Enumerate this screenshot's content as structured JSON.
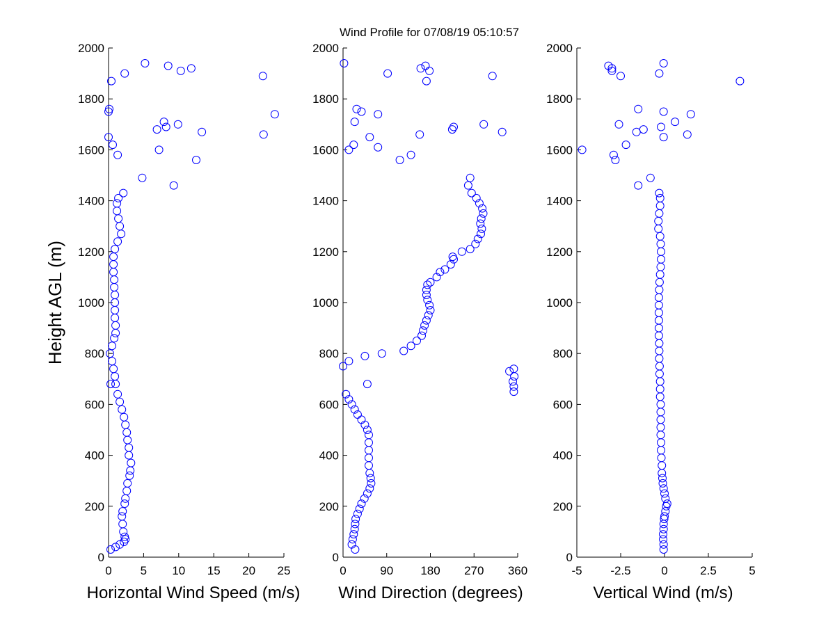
{
  "title": "Wind Profile for  07/08/19 05:10:57",
  "ylabel": "Height AGL (m)",
  "colors": {
    "marker": "#0000ff",
    "axis": "#000000",
    "background": "#ffffff"
  },
  "chart_data": [
    {
      "type": "scatter",
      "xlabel": "Horizontal Wind Speed (m/s)",
      "xlim": [
        0,
        25
      ],
      "ylim": [
        0,
        2000
      ],
      "xticks": [
        0,
        5,
        10,
        15,
        20,
        25
      ],
      "xtick_labels": [
        "0",
        "5",
        "10",
        "15",
        "20",
        "25"
      ],
      "yticks": [
        0,
        200,
        400,
        600,
        800,
        1000,
        1200,
        1400,
        1600,
        1800,
        2000
      ],
      "ytick_labels": [
        "0",
        "200",
        "400",
        "600",
        "800",
        "1000",
        "1200",
        "1400",
        "1600",
        "1800",
        "2000"
      ],
      "grid": false,
      "marker": "open circle",
      "points": [
        [
          0.3,
          30
        ],
        [
          1.0,
          40
        ],
        [
          1.6,
          50
        ],
        [
          2.2,
          60
        ],
        [
          2.4,
          70
        ],
        [
          2.3,
          80
        ],
        [
          2.1,
          100
        ],
        [
          2.0,
          130
        ],
        [
          1.9,
          160
        ],
        [
          2.0,
          180
        ],
        [
          2.3,
          210
        ],
        [
          2.4,
          230
        ],
        [
          2.6,
          260
        ],
        [
          2.7,
          290
        ],
        [
          3.0,
          320
        ],
        [
          3.1,
          340
        ],
        [
          3.2,
          370
        ],
        [
          2.9,
          400
        ],
        [
          2.9,
          430
        ],
        [
          2.7,
          460
        ],
        [
          2.6,
          490
        ],
        [
          2.4,
          520
        ],
        [
          2.2,
          550
        ],
        [
          1.9,
          580
        ],
        [
          1.6,
          610
        ],
        [
          1.3,
          640
        ],
        [
          1.0,
          680
        ],
        [
          0.9,
          710
        ],
        [
          0.7,
          740
        ],
        [
          0.5,
          770
        ],
        [
          0.2,
          800
        ],
        [
          0.5,
          830
        ],
        [
          0.8,
          860
        ],
        [
          1.0,
          880
        ],
        [
          1.0,
          910
        ],
        [
          0.9,
          940
        ],
        [
          0.9,
          970
        ],
        [
          0.9,
          1000
        ],
        [
          0.9,
          1030
        ],
        [
          0.8,
          1060
        ],
        [
          0.8,
          1090
        ],
        [
          0.7,
          1120
        ],
        [
          0.7,
          1150
        ],
        [
          0.7,
          1180
        ],
        [
          0.9,
          1210
        ],
        [
          1.3,
          1240
        ],
        [
          1.8,
          1270
        ],
        [
          1.6,
          1300
        ],
        [
          1.4,
          1330
        ],
        [
          1.2,
          1360
        ],
        [
          1.2,
          1390
        ],
        [
          1.4,
          1410
        ],
        [
          2.1,
          1430
        ],
        [
          0.3,
          680
        ],
        [
          5.2,
          1940
        ],
        [
          8.5,
          1930
        ],
        [
          11.8,
          1920
        ],
        [
          10.3,
          1910
        ],
        [
          2.3,
          1900
        ],
        [
          22.0,
          1890
        ],
        [
          0.4,
          1870
        ],
        [
          0.1,
          1760
        ],
        [
          0.0,
          1750
        ],
        [
          23.7,
          1740
        ],
        [
          7.9,
          1710
        ],
        [
          9.9,
          1700
        ],
        [
          8.2,
          1690
        ],
        [
          6.9,
          1680
        ],
        [
          13.3,
          1670
        ],
        [
          22.1,
          1660
        ],
        [
          0.0,
          1650
        ],
        [
          0.6,
          1620
        ],
        [
          7.2,
          1600
        ],
        [
          1.3,
          1580
        ],
        [
          12.5,
          1560
        ],
        [
          4.8,
          1490
        ],
        [
          9.3,
          1460
        ]
      ]
    },
    {
      "type": "scatter",
      "xlabel": "Wind Direction (degrees)",
      "xlim": [
        0,
        360
      ],
      "ylim": [
        0,
        2000
      ],
      "xticks": [
        0,
        90,
        180,
        270,
        360
      ],
      "xtick_labels": [
        "0",
        "90",
        "180",
        "270",
        "360"
      ],
      "yticks": [
        0,
        200,
        400,
        600,
        800,
        1000,
        1200,
        1400,
        1600,
        1800,
        2000
      ],
      "ytick_labels": [
        "0",
        "200",
        "400",
        "600",
        "800",
        "1000",
        "1200",
        "1400",
        "1600",
        "1800",
        "2000"
      ],
      "grid": false,
      "marker": "open circle",
      "points": [
        [
          25,
          30
        ],
        [
          18,
          50
        ],
        [
          20,
          70
        ],
        [
          22,
          90
        ],
        [
          24,
          110
        ],
        [
          25,
          130
        ],
        [
          26,
          150
        ],
        [
          30,
          170
        ],
        [
          34,
          190
        ],
        [
          38,
          210
        ],
        [
          44,
          230
        ],
        [
          50,
          250
        ],
        [
          55,
          270
        ],
        [
          58,
          290
        ],
        [
          57,
          310
        ],
        [
          55,
          330
        ],
        [
          53,
          360
        ],
        [
          53,
          390
        ],
        [
          53,
          420
        ],
        [
          53,
          450
        ],
        [
          53,
          480
        ],
        [
          50,
          500
        ],
        [
          45,
          520
        ],
        [
          38,
          540
        ],
        [
          30,
          560
        ],
        [
          24,
          580
        ],
        [
          18,
          600
        ],
        [
          12,
          620
        ],
        [
          6,
          640
        ],
        [
          50,
          680
        ],
        [
          0,
          750
        ],
        [
          12,
          770
        ],
        [
          45,
          790
        ],
        [
          80,
          800
        ],
        [
          125,
          810
        ],
        [
          140,
          830
        ],
        [
          152,
          850
        ],
        [
          162,
          870
        ],
        [
          165,
          890
        ],
        [
          168,
          910
        ],
        [
          172,
          930
        ],
        [
          176,
          950
        ],
        [
          180,
          970
        ],
        [
          178,
          990
        ],
        [
          174,
          1010
        ],
        [
          172,
          1030
        ],
        [
          172,
          1050
        ],
        [
          174,
          1070
        ],
        [
          180,
          1080
        ],
        [
          193,
          1100
        ],
        [
          200,
          1120
        ],
        [
          210,
          1130
        ],
        [
          222,
          1150
        ],
        [
          228,
          1170
        ],
        [
          226,
          1180
        ],
        [
          245,
          1200
        ],
        [
          262,
          1210
        ],
        [
          273,
          1230
        ],
        [
          278,
          1250
        ],
        [
          284,
          1270
        ],
        [
          286,
          1290
        ],
        [
          283,
          1310
        ],
        [
          285,
          1330
        ],
        [
          289,
          1350
        ],
        [
          287,
          1370
        ],
        [
          281,
          1390
        ],
        [
          275,
          1410
        ],
        [
          265,
          1430
        ],
        [
          258,
          1460
        ],
        [
          262,
          1490
        ],
        [
          352,
          650
        ],
        [
          352,
          670
        ],
        [
          350,
          690
        ],
        [
          353,
          710
        ],
        [
          343,
          730
        ],
        [
          352,
          740
        ],
        [
          2,
          1940
        ],
        [
          170,
          1930
        ],
        [
          160,
          1920
        ],
        [
          178,
          1910
        ],
        [
          92,
          1900
        ],
        [
          308,
          1890
        ],
        [
          172,
          1870
        ],
        [
          28,
          1760
        ],
        [
          38,
          1750
        ],
        [
          72,
          1740
        ],
        [
          24,
          1710
        ],
        [
          290,
          1700
        ],
        [
          228,
          1690
        ],
        [
          225,
          1680
        ],
        [
          328,
          1670
        ],
        [
          158,
          1660
        ],
        [
          55,
          1650
        ],
        [
          22,
          1620
        ],
        [
          72,
          1610
        ],
        [
          12,
          1600
        ],
        [
          140,
          1580
        ],
        [
          117,
          1560
        ]
      ]
    },
    {
      "type": "scatter",
      "xlabel": "Vertical Wind (m/s)",
      "xlim": [
        -5,
        5
      ],
      "ylim": [
        0,
        2000
      ],
      "xticks": [
        -5,
        -2.5,
        0,
        2.5,
        5
      ],
      "xtick_labels": [
        "-5",
        "-2.5",
        "0",
        "2.5",
        "5"
      ],
      "yticks": [
        0,
        200,
        400,
        600,
        800,
        1000,
        1200,
        1400,
        1600,
        1800,
        2000
      ],
      "ytick_labels": [
        "0",
        "200",
        "400",
        "600",
        "800",
        "1000",
        "1200",
        "1400",
        "1600",
        "1800",
        "2000"
      ],
      "grid": false,
      "marker": "open circle",
      "points": [
        [
          -0.05,
          30
        ],
        [
          -0.05,
          50
        ],
        [
          -0.08,
          70
        ],
        [
          -0.08,
          90
        ],
        [
          -0.05,
          110
        ],
        [
          -0.05,
          130
        ],
        [
          -0.02,
          150
        ],
        [
          0.0,
          160
        ],
        [
          0.05,
          180
        ],
        [
          0.1,
          200
        ],
        [
          0.15,
          210
        ],
        [
          0.05,
          230
        ],
        [
          0.0,
          250
        ],
        [
          -0.05,
          270
        ],
        [
          -0.1,
          290
        ],
        [
          -0.12,
          310
        ],
        [
          -0.15,
          330
        ],
        [
          -0.15,
          360
        ],
        [
          -0.18,
          390
        ],
        [
          -0.2,
          420
        ],
        [
          -0.2,
          450
        ],
        [
          -0.22,
          480
        ],
        [
          -0.22,
          510
        ],
        [
          -0.22,
          540
        ],
        [
          -0.22,
          570
        ],
        [
          -0.22,
          600
        ],
        [
          -0.25,
          630
        ],
        [
          -0.25,
          660
        ],
        [
          -0.25,
          690
        ],
        [
          -0.28,
          720
        ],
        [
          -0.28,
          750
        ],
        [
          -0.3,
          780
        ],
        [
          -0.3,
          810
        ],
        [
          -0.3,
          840
        ],
        [
          -0.32,
          870
        ],
        [
          -0.32,
          900
        ],
        [
          -0.32,
          930
        ],
        [
          -0.32,
          960
        ],
        [
          -0.32,
          990
        ],
        [
          -0.32,
          1020
        ],
        [
          -0.3,
          1050
        ],
        [
          -0.28,
          1080
        ],
        [
          -0.25,
          1110
        ],
        [
          -0.22,
          1140
        ],
        [
          -0.2,
          1170
        ],
        [
          -0.2,
          1200
        ],
        [
          -0.22,
          1230
        ],
        [
          -0.25,
          1260
        ],
        [
          -0.35,
          1290
        ],
        [
          -0.35,
          1320
        ],
        [
          -0.3,
          1350
        ],
        [
          -0.25,
          1380
        ],
        [
          -0.25,
          1410
        ],
        [
          -0.3,
          1430
        ],
        [
          -0.05,
          1940
        ],
        [
          -3.2,
          1930
        ],
        [
          -3.0,
          1920
        ],
        [
          -3.0,
          1910
        ],
        [
          -0.3,
          1900
        ],
        [
          -2.5,
          1890
        ],
        [
          4.3,
          1870
        ],
        [
          -1.5,
          1760
        ],
        [
          -0.05,
          1750
        ],
        [
          1.5,
          1740
        ],
        [
          0.6,
          1710
        ],
        [
          -2.6,
          1700
        ],
        [
          -0.2,
          1690
        ],
        [
          -1.2,
          1680
        ],
        [
          -1.6,
          1670
        ],
        [
          1.3,
          1660
        ],
        [
          -0.05,
          1650
        ],
        [
          -2.2,
          1620
        ],
        [
          -4.7,
          1600
        ],
        [
          -2.9,
          1580
        ],
        [
          -2.8,
          1560
        ],
        [
          -0.8,
          1490
        ],
        [
          -1.5,
          1460
        ]
      ]
    }
  ]
}
